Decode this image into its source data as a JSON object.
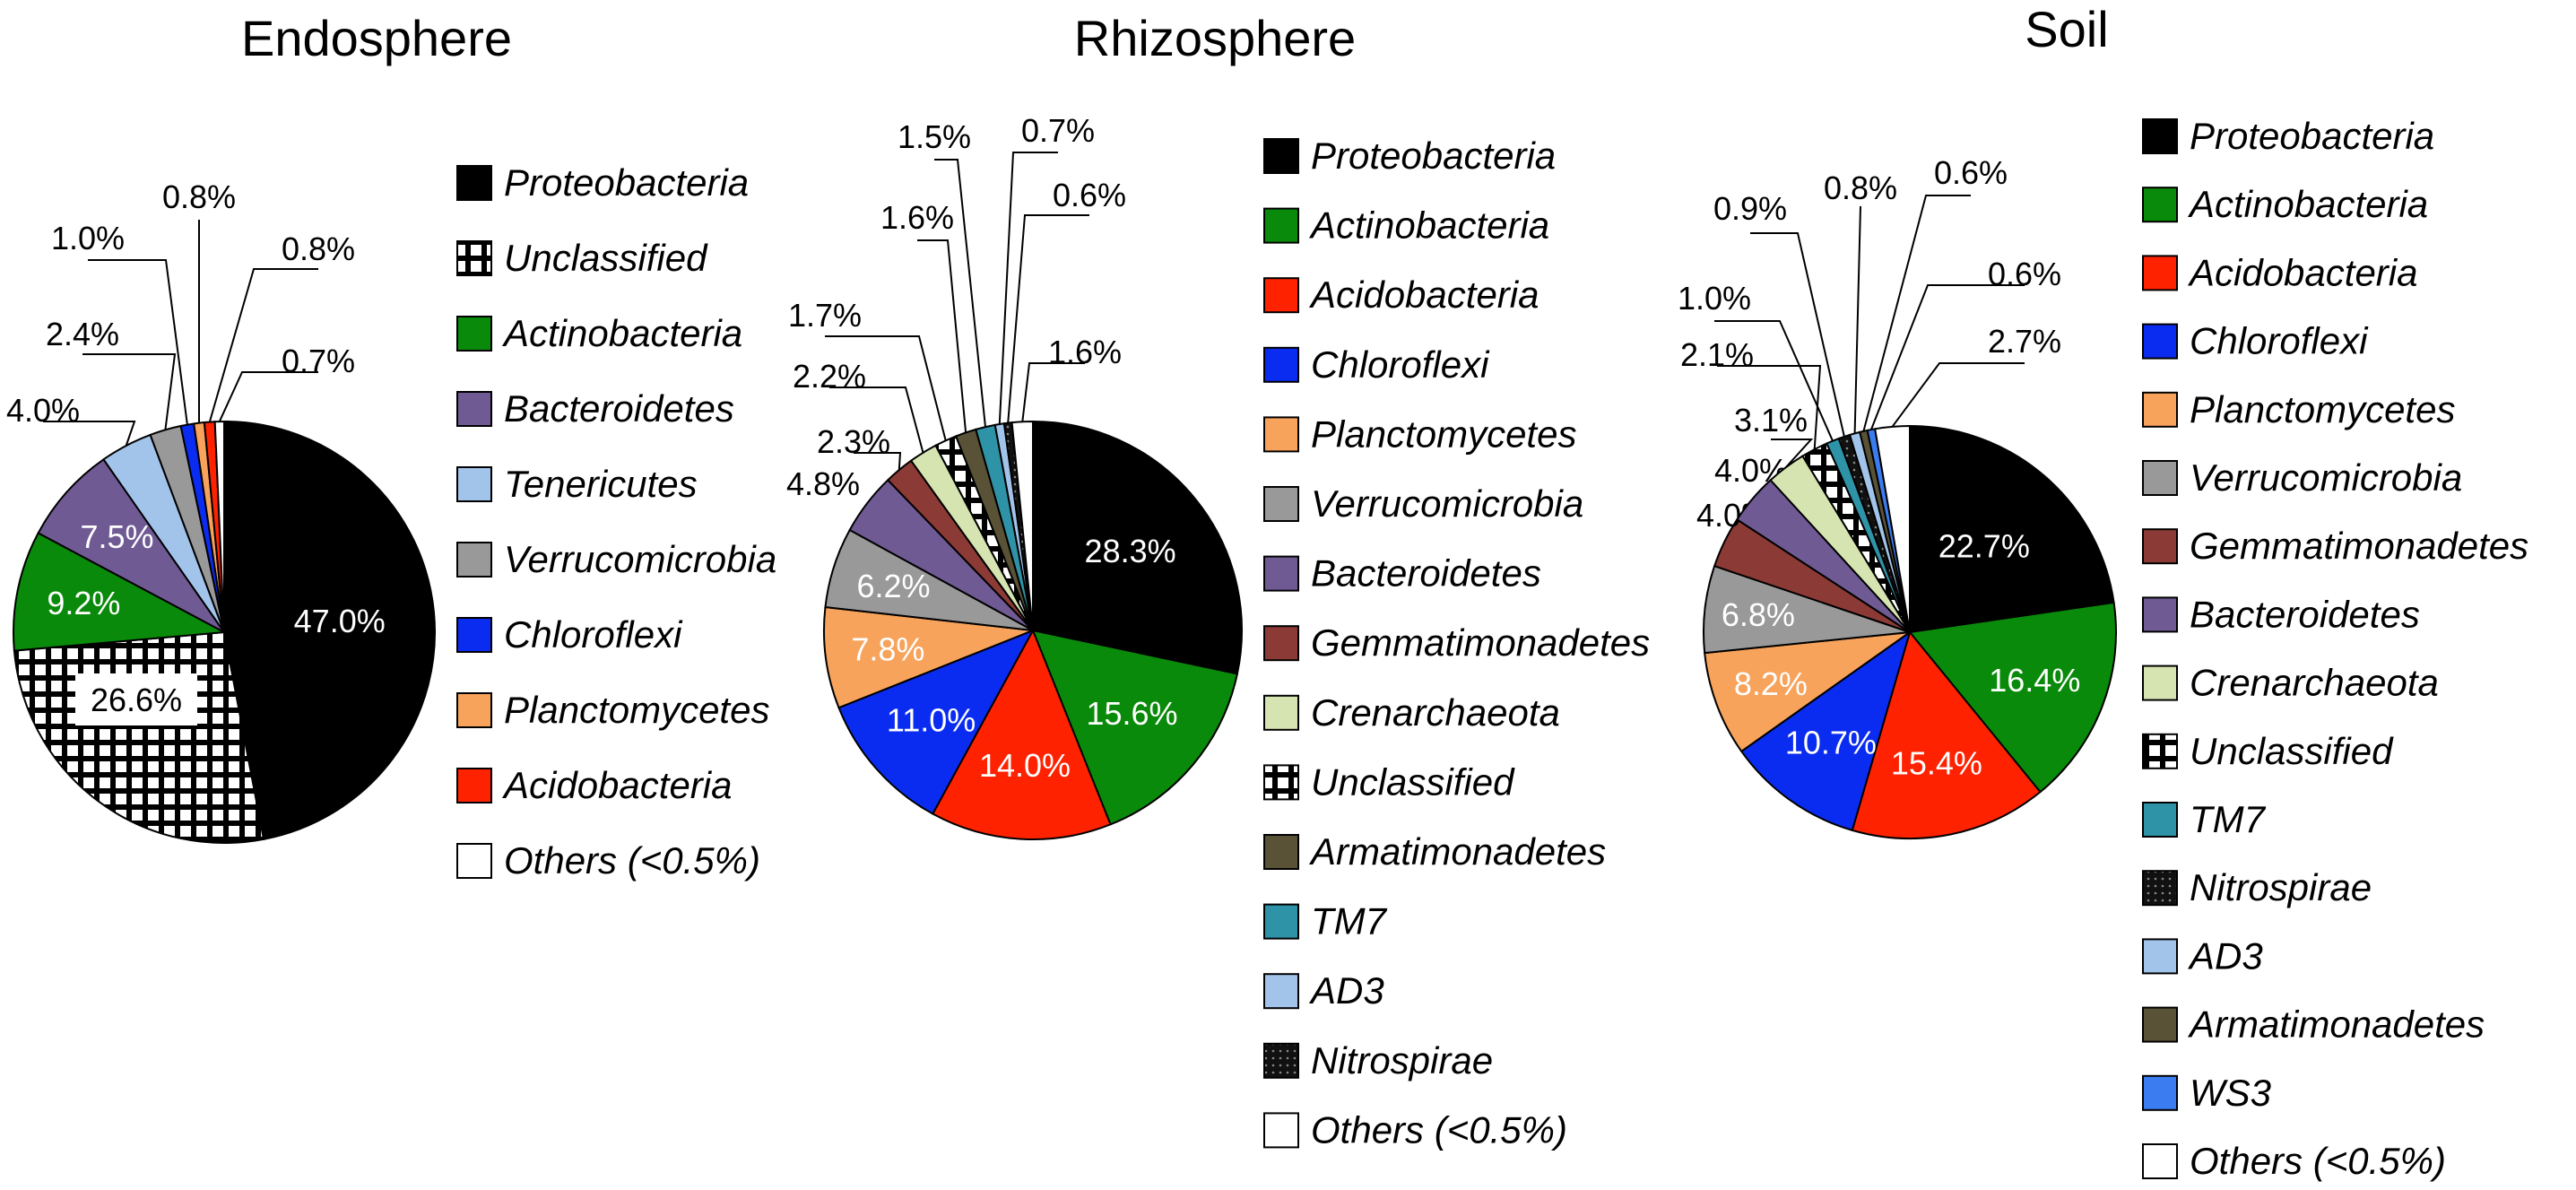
{
  "chart_data": [
    {
      "type": "pie",
      "title": "Endosphere",
      "unit": "%",
      "slices": [
        {
          "label": "Proteobacteria",
          "value": 47.0,
          "color": "#000000",
          "value_label": "47.0%"
        },
        {
          "label": "Unclassified",
          "value": 26.6,
          "color": "#ffffff",
          "pattern": "grid",
          "value_label": "26.6%"
        },
        {
          "label": "Actinobacteria",
          "value": 9.2,
          "color": "#0a8a0a",
          "value_label": "9.2%"
        },
        {
          "label": "Bacteroidetes",
          "value": 7.5,
          "color": "#6f5a94",
          "value_label": "7.5%"
        },
        {
          "label": "Tenericutes",
          "value": 4.0,
          "color": "#a3c4ea",
          "value_label": "4.0%"
        },
        {
          "label": "Verrucomicrobia",
          "value": 2.4,
          "color": "#999999",
          "value_label": "2.4%"
        },
        {
          "label": "Chloroflexi",
          "value": 1.0,
          "color": "#0a2cf0",
          "value_label": "1.0%"
        },
        {
          "label": "Planctomycetes",
          "value": 0.8,
          "color": "#f7a35c",
          "value_label": "0.8%"
        },
        {
          "label": "Acidobacteria",
          "value": 0.8,
          "color": "#ff2200",
          "value_label": "0.8%"
        },
        {
          "label": "Others (<0.5%)",
          "value": 0.7,
          "color": "#ffffff",
          "value_label": "0.7%"
        }
      ]
    },
    {
      "type": "pie",
      "title": "Rhizosphere",
      "unit": "%",
      "slices": [
        {
          "label": "Proteobacteria",
          "value": 28.3,
          "color": "#000000",
          "value_label": "28.3%"
        },
        {
          "label": "Actinobacteria",
          "value": 15.6,
          "color": "#0a8a0a",
          "value_label": "15.6%"
        },
        {
          "label": "Acidobacteria",
          "value": 14.0,
          "color": "#ff2200",
          "value_label": "14.0%"
        },
        {
          "label": "Chloroflexi",
          "value": 11.0,
          "color": "#0a2cf0",
          "value_label": "11.0%"
        },
        {
          "label": "Planctomycetes",
          "value": 7.8,
          "color": "#f7a35c",
          "value_label": "7.8%"
        },
        {
          "label": "Verrucomicrobia",
          "value": 6.2,
          "color": "#999999",
          "value_label": "6.2%"
        },
        {
          "label": "Bacteroidetes",
          "value": 4.8,
          "color": "#6f5a94",
          "value_label": "4.8%"
        },
        {
          "label": "Gemmatimonadetes",
          "value": 2.3,
          "color": "#8b3a36",
          "value_label": "2.3%"
        },
        {
          "label": "Crenarchaeota",
          "value": 2.2,
          "color": "#d6e4b2",
          "value_label": "2.2%"
        },
        {
          "label": "Unclassified",
          "value": 1.7,
          "color": "#ffffff",
          "pattern": "grid",
          "value_label": "1.7%"
        },
        {
          "label": "Armatimonadetes",
          "value": 1.6,
          "color": "#5a5236",
          "value_label": "1.6%"
        },
        {
          "label": "TM7",
          "value": 1.5,
          "color": "#2f93a8",
          "value_label": "1.5%"
        },
        {
          "label": "AD3",
          "value": 0.7,
          "color": "#a3c4ea",
          "value_label": "0.7%"
        },
        {
          "label": "Nitrospirae",
          "value": 0.6,
          "color": "#222222",
          "pattern": "dots",
          "value_label": "0.6%"
        },
        {
          "label": "Others (<0.5%)",
          "value": 1.6,
          "color": "#ffffff",
          "value_label": "1.6%"
        }
      ]
    },
    {
      "type": "pie",
      "title": "Soil",
      "unit": "%",
      "slices": [
        {
          "label": "Proteobacteria",
          "value": 22.7,
          "color": "#000000",
          "value_label": "22.7%"
        },
        {
          "label": "Actinobacteria",
          "value": 16.4,
          "color": "#0a8a0a",
          "value_label": "16.4%"
        },
        {
          "label": "Acidobacteria",
          "value": 15.4,
          "color": "#ff2200",
          "value_label": "15.4%"
        },
        {
          "label": "Chloroflexi",
          "value": 10.7,
          "color": "#0a2cf0",
          "value_label": "10.7%"
        },
        {
          "label": "Planctomycetes",
          "value": 8.2,
          "color": "#f7a35c",
          "value_label": "8.2%"
        },
        {
          "label": "Verrucomicrobia",
          "value": 6.8,
          "color": "#999999",
          "value_label": "6.8%"
        },
        {
          "label": "Gemmatimonadetes",
          "value": 4.0,
          "color": "#8b3a36",
          "value_label": "4.0%"
        },
        {
          "label": "Bacteroidetes",
          "value": 4.0,
          "color": "#6f5a94",
          "value_label": "4.0%"
        },
        {
          "label": "Crenarchaeota",
          "value": 3.1,
          "color": "#d6e4b2",
          "value_label": "3.1%"
        },
        {
          "label": "Unclassified",
          "value": 2.1,
          "color": "#ffffff",
          "pattern": "grid",
          "value_label": "2.1%"
        },
        {
          "label": "TM7",
          "value": 1.0,
          "color": "#2f93a8",
          "value_label": "1.0%"
        },
        {
          "label": "Nitrospirae",
          "value": 0.9,
          "color": "#222222",
          "pattern": "dots",
          "value_label": "0.9%"
        },
        {
          "label": "AD3",
          "value": 0.8,
          "color": "#a3c4ea",
          "value_label": "0.8%"
        },
        {
          "label": "Armatimonadetes",
          "value": 0.6,
          "color": "#5a5236",
          "value_label": "0.6%"
        },
        {
          "label": "WS3",
          "value": 0.6,
          "color": "#3b7df0",
          "value_label": "0.6%"
        },
        {
          "label": "Others (<0.5%)",
          "value": 2.7,
          "color": "#ffffff",
          "value_label": "2.7%"
        }
      ]
    }
  ]
}
